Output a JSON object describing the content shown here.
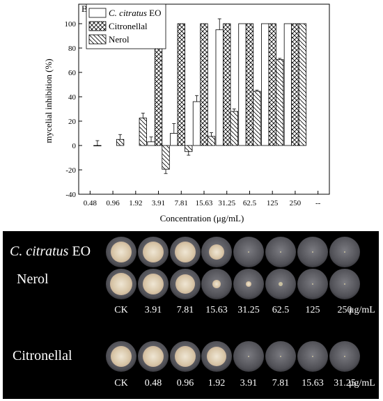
{
  "chart_data": {
    "type": "bar",
    "panel_label": "B",
    "xlabel": "Concentration (μg/mL)",
    "ylabel": "mycelial inhibition (%)",
    "ylim": [
      -40,
      100
    ],
    "yticks": [
      -40,
      -20,
      0,
      20,
      40,
      60,
      80,
      100
    ],
    "categories": [
      "0.48",
      "0.96",
      "1.92",
      "3.91",
      "7.81",
      "15.63",
      "31.25",
      "62.5",
      "125",
      "250",
      "--"
    ],
    "legend_position": "top-left",
    "series": [
      {
        "name_italic": "C. citratus",
        "name_rest": " EO",
        "pattern": "blank",
        "values": [
          null,
          null,
          null,
          3,
          10,
          36,
          95,
          100,
          100,
          100,
          null
        ],
        "errors": [
          null,
          null,
          null,
          4,
          8,
          5,
          9,
          0,
          0,
          0,
          null
        ]
      },
      {
        "name": "Citronellal",
        "pattern": "crosshatch",
        "values": [
          null,
          null,
          null,
          100,
          100,
          100,
          100,
          100,
          100,
          100,
          null
        ],
        "errors": [
          null,
          null,
          null,
          0,
          0,
          0,
          0,
          0,
          0,
          0,
          null
        ]
      },
      {
        "name": "Nerol",
        "pattern": "diagonal",
        "values": [
          0,
          5,
          22.5,
          -19.5,
          -5,
          7.5,
          28,
          44.5,
          70.5,
          100,
          null
        ],
        "errors": [
          4,
          4,
          4,
          3.5,
          3,
          3,
          2,
          1,
          1,
          0,
          null
        ]
      }
    ]
  },
  "photo": {
    "row_labels": {
      "ceo_italic": "C. citratus",
      "ceo_rest": " EO",
      "nerol": "Nerol",
      "citronellal": "Citronellal"
    },
    "nerol_ceo_concentrations": [
      "CK",
      "3.91",
      "7.81",
      "15.63",
      "31.25",
      "62.5",
      "125",
      "250"
    ],
    "citronellal_concentrations": [
      "CK",
      "0.48",
      "0.96",
      "1.92",
      "3.91",
      "7.81",
      "15.63",
      "31.25"
    ],
    "unit": "μg/mL"
  }
}
